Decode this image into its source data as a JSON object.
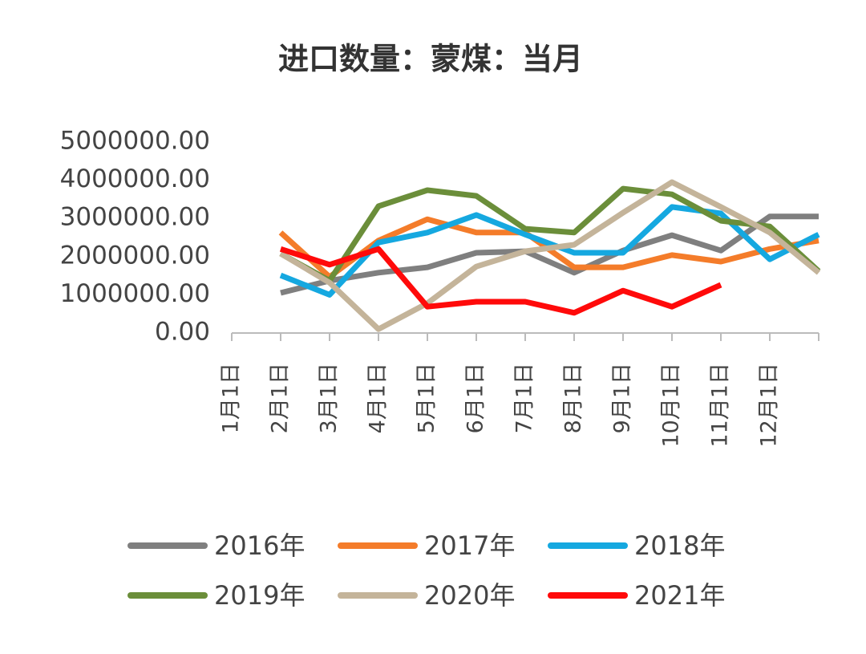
{
  "chart_data": {
    "type": "line",
    "title": "进口数量：蒙煤：当月",
    "categories": [
      "1月1日",
      "2月1日",
      "3月1日",
      "4月1日",
      "5月1日",
      "6月1日",
      "7月1日",
      "8月1日",
      "9月1日",
      "10月1日",
      "11月1日",
      "12月1日",
      null
    ],
    "series": [
      {
        "name": "2016年",
        "color": "#7f7f7f",
        "values": [
          null,
          1050000,
          1370000,
          1580000,
          1720000,
          2100000,
          2140000,
          1580000,
          2160000,
          2560000,
          2160000,
          3050000,
          3050000
        ]
      },
      {
        "name": "2017年",
        "color": "#f47c2a",
        "values": [
          null,
          2630000,
          1470000,
          2420000,
          2980000,
          2630000,
          2630000,
          1720000,
          1720000,
          2040000,
          1870000,
          2200000,
          2420000
        ]
      },
      {
        "name": "2018年",
        "color": "#15a8e0",
        "values": [
          null,
          1510000,
          1000000,
          2370000,
          2630000,
          3090000,
          2580000,
          2100000,
          2100000,
          3300000,
          3130000,
          1930000,
          2580000
        ]
      },
      {
        "name": "2019年",
        "color": "#6b8e3a",
        "values": [
          null,
          2080000,
          1370000,
          3320000,
          3740000,
          3590000,
          2730000,
          2630000,
          3780000,
          3630000,
          2940000,
          2790000,
          1620000
        ]
      },
      {
        "name": "2020年",
        "color": "#c4b49a",
        "values": [
          null,
          2080000,
          1320000,
          100000,
          780000,
          1740000,
          2140000,
          2310000,
          3150000,
          3950000,
          3300000,
          2630000,
          1580000
        ]
      },
      {
        "name": "2021年",
        "color": "#ff0a0a",
        "values": [
          null,
          2200000,
          1790000,
          2200000,
          690000,
          820000,
          820000,
          530000,
          1110000,
          690000,
          1260000,
          null,
          null
        ]
      }
    ],
    "ylim": [
      0,
      5000000
    ],
    "yticks": [
      {
        "value": 0,
        "label": "0.00"
      },
      {
        "value": 1000000,
        "label": "1000000.00"
      },
      {
        "value": 2000000,
        "label": "2000000.00"
      },
      {
        "value": 3000000,
        "label": "3000000.00"
      },
      {
        "value": 4000000,
        "label": "4000000.00"
      },
      {
        "value": 5000000,
        "label": "5000000.00"
      }
    ],
    "grid": false
  }
}
